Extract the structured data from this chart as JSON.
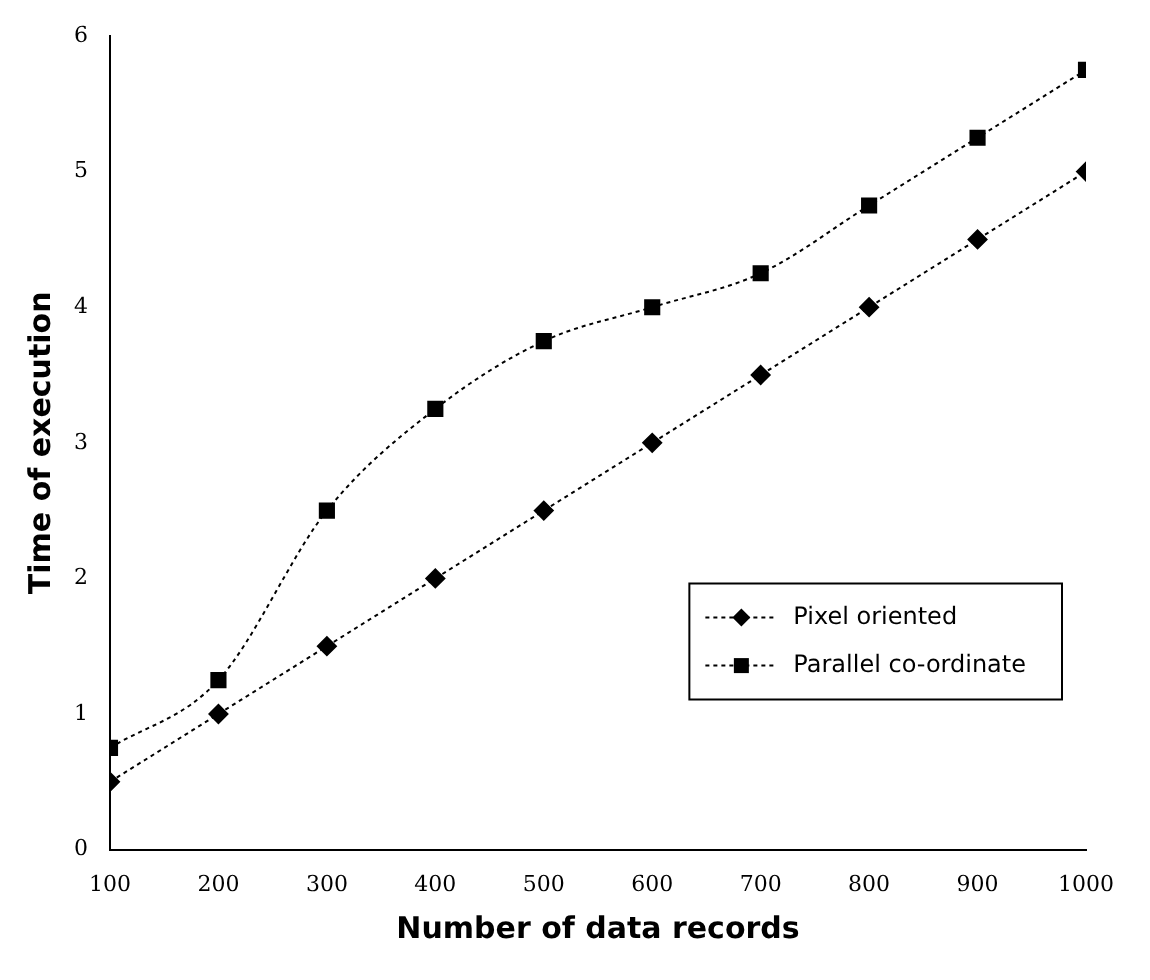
{
  "chart_data": {
    "type": "line",
    "xlabel": "Number of data records",
    "ylabel": "Time of execution",
    "x": [
      100,
      200,
      300,
      400,
      500,
      600,
      700,
      800,
      900,
      1000
    ],
    "series": [
      {
        "name": "Pixel oriented",
        "color": "#000000",
        "marker": "diamond",
        "values": [
          0.5,
          1,
          1.5,
          2,
          2.5,
          3,
          3.5,
          4,
          4.5,
          5
        ]
      },
      {
        "name": "Parallel co-ordinate",
        "color": "#000000",
        "marker": "square",
        "values": [
          0.75,
          1.25,
          2.5,
          3.25,
          3.75,
          4,
          4.25,
          4.75,
          5.25,
          5.75
        ]
      }
    ],
    "xlim": [
      100,
      1000
    ],
    "xticks": [
      100,
      200,
      300,
      400,
      500,
      600,
      700,
      800,
      900,
      1000
    ],
    "ylim": [
      0,
      6
    ],
    "yticks": [
      0,
      1,
      2,
      3,
      4,
      5,
      6
    ],
    "grid": false,
    "legend": "bottom right",
    "line_style": "dotted"
  }
}
